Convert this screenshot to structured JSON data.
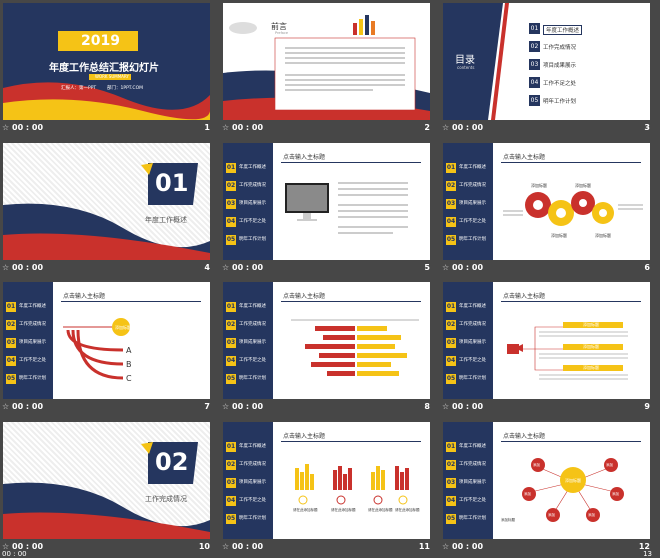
{
  "slides": [
    {
      "num": "1",
      "time": "00 : 00",
      "year": "2019",
      "title": "年度工作总结汇报幻灯片",
      "tag": "WORK SUMMARY",
      "reporter": "汇报人：第一PPT",
      "dept": "部门：1PPT.COM"
    },
    {
      "num": "2",
      "time": "00 : 00",
      "title": "前言",
      "subtitle": "Preface"
    },
    {
      "num": "3",
      "time": "00 : 00",
      "title": "目录",
      "subtitle": "contents",
      "items": [
        {
          "n": "01",
          "label": "年度工作概述"
        },
        {
          "n": "02",
          "label": "工作完成情况"
        },
        {
          "n": "03",
          "label": "项目成果展示"
        },
        {
          "n": "04",
          "label": "工作不足之处"
        },
        {
          "n": "05",
          "label": "明年工作计划"
        }
      ]
    },
    {
      "num": "4",
      "time": "00 : 00",
      "n": "01",
      "label": "年度工作概述"
    },
    {
      "num": "5",
      "time": "00 : 00",
      "heading": "点击输入主标题"
    },
    {
      "num": "6",
      "time": "00 : 00",
      "heading": "点击输入主标题",
      "gears": [
        "添加标题",
        "添加标题",
        "添加标题",
        "添加标题"
      ]
    },
    {
      "num": "7",
      "time": "00 : 00",
      "heading": "点击输入主标题",
      "circle": "添加标题",
      "letters": [
        "A",
        "B",
        "C"
      ]
    },
    {
      "num": "8",
      "time": "00 : 00",
      "heading": "点击输入主标题"
    },
    {
      "num": "9",
      "time": "00 : 00",
      "heading": "点击输入主标题",
      "tags": [
        "添加标题",
        "添加标题",
        "添加标题"
      ]
    },
    {
      "num": "10",
      "time": "00 : 00",
      "n": "02",
      "label": "工作完成情况"
    },
    {
      "num": "11",
      "time": "00 : 00",
      "heading": "点击输入主标题",
      "captions": [
        "请在此添加标题",
        "请在此添加标题",
        "请在此添加标题",
        "请在此添加标题"
      ]
    },
    {
      "num": "12",
      "time": "00 : 00",
      "heading": "点击输入主标题",
      "center": "添加标题",
      "nodes": [
        "添加",
        "添加",
        "添加",
        "添加",
        "添加",
        "添加"
      ],
      "bottom": "添加标题"
    }
  ],
  "nav": [
    {
      "n": "01",
      "label": "年度工作概述"
    },
    {
      "n": "02",
      "label": "工作完成情况"
    },
    {
      "n": "03",
      "label": "项目成果展示"
    },
    {
      "n": "04",
      "label": "工作不足之处"
    },
    {
      "n": "05",
      "label": "明年工作计划"
    }
  ],
  "status": {
    "left": "00 : 00",
    "right": "13"
  },
  "colors": {
    "navy": "#25365f",
    "red": "#c9312c",
    "yellow": "#f5c316"
  }
}
